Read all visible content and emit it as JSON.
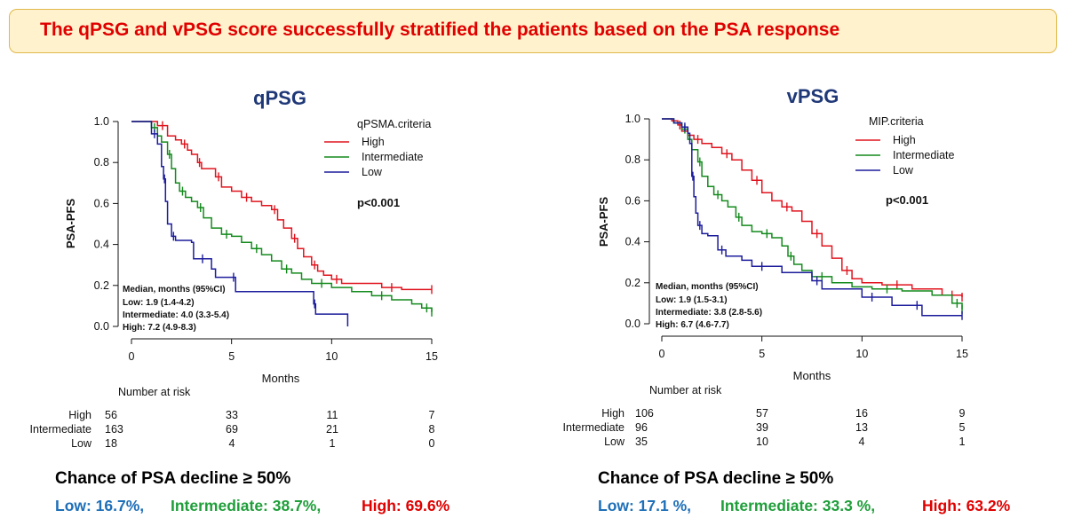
{
  "banner": {
    "text": "The qPSG and vPSG score successfully stratified the patients based on the  PSA response"
  },
  "colors": {
    "High": "#e0141e",
    "Intermediate": "#138a1c",
    "Low": "#1c1c9c"
  },
  "chart_data": [
    {
      "type": "line",
      "title": "qPSG",
      "xlabel": "Months",
      "ylabel": "PSA-PFS",
      "xlim": [
        0,
        15
      ],
      "ylim": [
        0,
        1
      ],
      "xticks": [
        "0",
        "5",
        "10",
        "15"
      ],
      "yticks": [
        "0.0",
        "0.2",
        "0.4",
        "0.6",
        "0.8",
        "1.0"
      ],
      "legend_title": "qPSMA.criteria",
      "legend_position": "top-right",
      "p_value": "p<0.001",
      "median_lines": [
        "Median, months (95%CI)",
        "Low: 1.9 (1.4-4.2)",
        "Intermediate: 4.0 (3.3-5.4)",
        "High: 7.2 (4.9-8.3)"
      ],
      "series": [
        {
          "name": "High",
          "points": [
            [
              0,
              1.0
            ],
            [
              0.8,
              1.0
            ],
            [
              1.3,
              0.98
            ],
            [
              1.8,
              0.93
            ],
            [
              2.2,
              0.91
            ],
            [
              2.5,
              0.89
            ],
            [
              2.8,
              0.86
            ],
            [
              3.0,
              0.84
            ],
            [
              3.3,
              0.8
            ],
            [
              3.5,
              0.77
            ],
            [
              4.0,
              0.77
            ],
            [
              4.2,
              0.73
            ],
            [
              4.5,
              0.68
            ],
            [
              5.0,
              0.66
            ],
            [
              5.5,
              0.63
            ],
            [
              6.0,
              0.61
            ],
            [
              6.5,
              0.59
            ],
            [
              7.0,
              0.57
            ],
            [
              7.3,
              0.52
            ],
            [
              7.6,
              0.48
            ],
            [
              8.0,
              0.43
            ],
            [
              8.3,
              0.38
            ],
            [
              8.6,
              0.34
            ],
            [
              9.0,
              0.3
            ],
            [
              9.3,
              0.27
            ],
            [
              9.6,
              0.25
            ],
            [
              10.0,
              0.23
            ],
            [
              10.5,
              0.21
            ],
            [
              11.5,
              0.21
            ],
            [
              12.5,
              0.19
            ],
            [
              13.5,
              0.18
            ],
            [
              15.0,
              0.18
            ]
          ]
        },
        {
          "name": "Intermediate",
          "points": [
            [
              0,
              1.0
            ],
            [
              0.7,
              1.0
            ],
            [
              1.0,
              0.97
            ],
            [
              1.3,
              0.93
            ],
            [
              1.5,
              0.9
            ],
            [
              1.8,
              0.84
            ],
            [
              2.0,
              0.77
            ],
            [
              2.2,
              0.7
            ],
            [
              2.4,
              0.66
            ],
            [
              2.7,
              0.63
            ],
            [
              3.0,
              0.61
            ],
            [
              3.3,
              0.58
            ],
            [
              3.6,
              0.53
            ],
            [
              4.0,
              0.48
            ],
            [
              4.5,
              0.45
            ],
            [
              5.0,
              0.44
            ],
            [
              5.5,
              0.41
            ],
            [
              6.0,
              0.38
            ],
            [
              6.5,
              0.35
            ],
            [
              7.0,
              0.32
            ],
            [
              7.5,
              0.28
            ],
            [
              8.0,
              0.26
            ],
            [
              8.5,
              0.23
            ],
            [
              9.0,
              0.21
            ],
            [
              10.0,
              0.19
            ],
            [
              11.0,
              0.17
            ],
            [
              12.0,
              0.15
            ],
            [
              13.0,
              0.13
            ],
            [
              14.0,
              0.11
            ],
            [
              14.5,
              0.09
            ],
            [
              15.0,
              0.07
            ]
          ]
        },
        {
          "name": "Low",
          "points": [
            [
              0,
              1.0
            ],
            [
              0.7,
              1.0
            ],
            [
              1.0,
              0.94
            ],
            [
              1.3,
              0.89
            ],
            [
              1.5,
              0.78
            ],
            [
              1.6,
              0.72
            ],
            [
              1.7,
              0.61
            ],
            [
              1.8,
              0.5
            ],
            [
              2.0,
              0.44
            ],
            [
              2.2,
              0.42
            ],
            [
              3.0,
              0.41
            ],
            [
              3.1,
              0.33
            ],
            [
              4.0,
              0.28
            ],
            [
              4.2,
              0.24
            ],
            [
              5.0,
              0.24
            ],
            [
              5.2,
              0.17
            ],
            [
              8.5,
              0.17
            ],
            [
              9.1,
              0.11
            ],
            [
              9.2,
              0.06
            ],
            [
              10.8,
              0.06
            ],
            [
              10.8,
              0.0
            ]
          ]
        }
      ],
      "risk_table": {
        "header": "Number at risk",
        "times": [
          0,
          5,
          10,
          15
        ],
        "rows": [
          {
            "label": "High",
            "values": [
              "56",
              "33",
              "11",
              "7"
            ]
          },
          {
            "label": "Intermediate",
            "values": [
              "163",
              "69",
              "21",
              "8"
            ]
          },
          {
            "label": "Low",
            "values": [
              "18",
              "4",
              "1",
              "0"
            ]
          }
        ]
      }
    },
    {
      "type": "line",
      "title": "vPSG",
      "xlabel": "Months",
      "ylabel": "PSA-PFS",
      "xlim": [
        0,
        15
      ],
      "ylim": [
        0,
        1
      ],
      "xticks": [
        "0",
        "5",
        "10",
        "15"
      ],
      "yticks": [
        "0.0",
        "0.2",
        "0.4",
        "0.6",
        "0.8",
        "1.0"
      ],
      "legend_title": "MIP.criteria",
      "legend_position": "top-right",
      "p_value": "p<0.001",
      "median_lines": [
        "Median, months (95%CI)",
        "Low: 1.9 (1.5-3.1)",
        "Intermediate: 3.8 (2.8-5.6)",
        "High: 6.7 (4.6-7.7)"
      ],
      "series": [
        {
          "name": "High",
          "points": [
            [
              0,
              1.0
            ],
            [
              0.5,
              0.99
            ],
            [
              0.8,
              0.97
            ],
            [
              1.0,
              0.94
            ],
            [
              1.3,
              0.92
            ],
            [
              1.6,
              0.9
            ],
            [
              2.0,
              0.88
            ],
            [
              2.5,
              0.86
            ],
            [
              3.0,
              0.83
            ],
            [
              3.5,
              0.8
            ],
            [
              4.0,
              0.75
            ],
            [
              4.5,
              0.7
            ],
            [
              5.0,
              0.64
            ],
            [
              5.5,
              0.6
            ],
            [
              6.0,
              0.57
            ],
            [
              6.5,
              0.55
            ],
            [
              7.0,
              0.5
            ],
            [
              7.5,
              0.44
            ],
            [
              8.0,
              0.38
            ],
            [
              8.5,
              0.32
            ],
            [
              9.0,
              0.26
            ],
            [
              9.5,
              0.22
            ],
            [
              10.0,
              0.2
            ],
            [
              11.0,
              0.19
            ],
            [
              12.5,
              0.17
            ],
            [
              13.5,
              0.17
            ],
            [
              14.0,
              0.14
            ],
            [
              15.0,
              0.13
            ]
          ]
        },
        {
          "name": "Intermediate",
          "points": [
            [
              0,
              1.0
            ],
            [
              0.6,
              0.98
            ],
            [
              1.0,
              0.95
            ],
            [
              1.3,
              0.9
            ],
            [
              1.5,
              0.85
            ],
            [
              1.8,
              0.79
            ],
            [
              2.0,
              0.72
            ],
            [
              2.3,
              0.67
            ],
            [
              2.6,
              0.63
            ],
            [
              3.0,
              0.6
            ],
            [
              3.3,
              0.57
            ],
            [
              3.7,
              0.52
            ],
            [
              4.0,
              0.48
            ],
            [
              4.5,
              0.45
            ],
            [
              5.0,
              0.44
            ],
            [
              5.5,
              0.42
            ],
            [
              6.0,
              0.38
            ],
            [
              6.3,
              0.33
            ],
            [
              6.6,
              0.29
            ],
            [
              7.0,
              0.26
            ],
            [
              7.5,
              0.23
            ],
            [
              8.5,
              0.2
            ],
            [
              9.5,
              0.18
            ],
            [
              10.5,
              0.17
            ],
            [
              12.0,
              0.16
            ],
            [
              13.5,
              0.14
            ],
            [
              14.5,
              0.1
            ],
            [
              15.0,
              0.07
            ]
          ]
        },
        {
          "name": "Low",
          "points": [
            [
              0,
              1.0
            ],
            [
              0.6,
              0.98
            ],
            [
              1.0,
              0.96
            ],
            [
              1.3,
              0.93
            ],
            [
              1.4,
              0.88
            ],
            [
              1.5,
              0.72
            ],
            [
              1.6,
              0.62
            ],
            [
              1.7,
              0.54
            ],
            [
              1.8,
              0.48
            ],
            [
              2.0,
              0.44
            ],
            [
              2.3,
              0.43
            ],
            [
              2.8,
              0.36
            ],
            [
              3.2,
              0.33
            ],
            [
              4.0,
              0.31
            ],
            [
              4.5,
              0.28
            ],
            [
              5.5,
              0.28
            ],
            [
              6.0,
              0.25
            ],
            [
              7.5,
              0.21
            ],
            [
              8.0,
              0.17
            ],
            [
              9.5,
              0.17
            ],
            [
              10.0,
              0.13
            ],
            [
              11.0,
              0.13
            ],
            [
              11.5,
              0.09
            ],
            [
              12.5,
              0.09
            ],
            [
              13.0,
              0.04
            ],
            [
              15.0,
              0.04
            ]
          ]
        }
      ],
      "risk_table": {
        "header": "Number at risk",
        "times": [
          0,
          5,
          10,
          15
        ],
        "rows": [
          {
            "label": "High",
            "values": [
              "106",
              "57",
              "16",
              "9"
            ]
          },
          {
            "label": "Intermediate",
            "values": [
              "96",
              "39",
              "13",
              "5"
            ]
          },
          {
            "label": "Low",
            "values": [
              "35",
              "10",
              "4",
              "1"
            ]
          }
        ]
      }
    }
  ],
  "summaries": [
    {
      "heading": "Chance of PSA decline ≥ 50%",
      "low": "Low: 16.7%,",
      "intermediate": "Intermediate: 38.7%,",
      "high": "High: 69.6%"
    },
    {
      "heading": "Chance of PSA decline ≥ 50%",
      "low": "Low: 17.1 %,",
      "intermediate": "Intermediate: 33.3 %,",
      "high": "High: 63.2%"
    }
  ]
}
